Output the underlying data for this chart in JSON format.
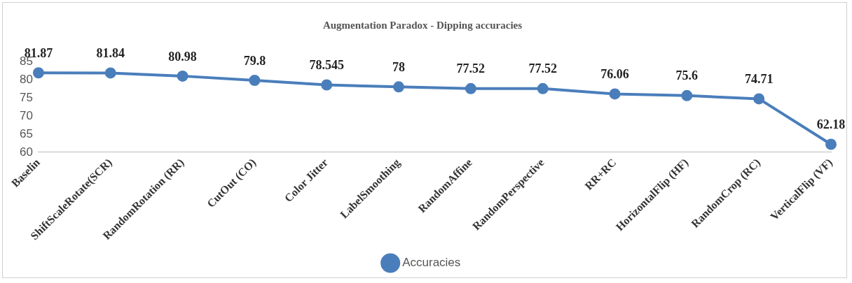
{
  "chart_data": {
    "type": "line",
    "title": "Augmentation Paradox - Dipping accuracies",
    "categories": [
      "Baselin",
      "ShiftScaleRotate(SCR)",
      "RandomRotation (RR)",
      "CutOut (CO)",
      "Color Jitter",
      "LabelSmoothing",
      "RandomAffine",
      "RandomPerspective",
      "RR+RC",
      "HorizontalFlip (HF)",
      "RandomCrop (RC)",
      "VerticalFlip (VF)"
    ],
    "series": [
      {
        "name": "Accuracies",
        "color": "#4a7ebb",
        "values": [
          81.87,
          81.84,
          80.98,
          79.8,
          78.545,
          78,
          77.52,
          77.52,
          76.06,
          75.6,
          74.71,
          62.18
        ]
      }
    ],
    "ylim": [
      60,
      85
    ],
    "yticks": [
      60,
      65,
      70,
      75,
      80,
      85
    ],
    "grid": false,
    "legend": "bottom",
    "marker": "circle",
    "line_style": "solid",
    "data_labels": true
  }
}
